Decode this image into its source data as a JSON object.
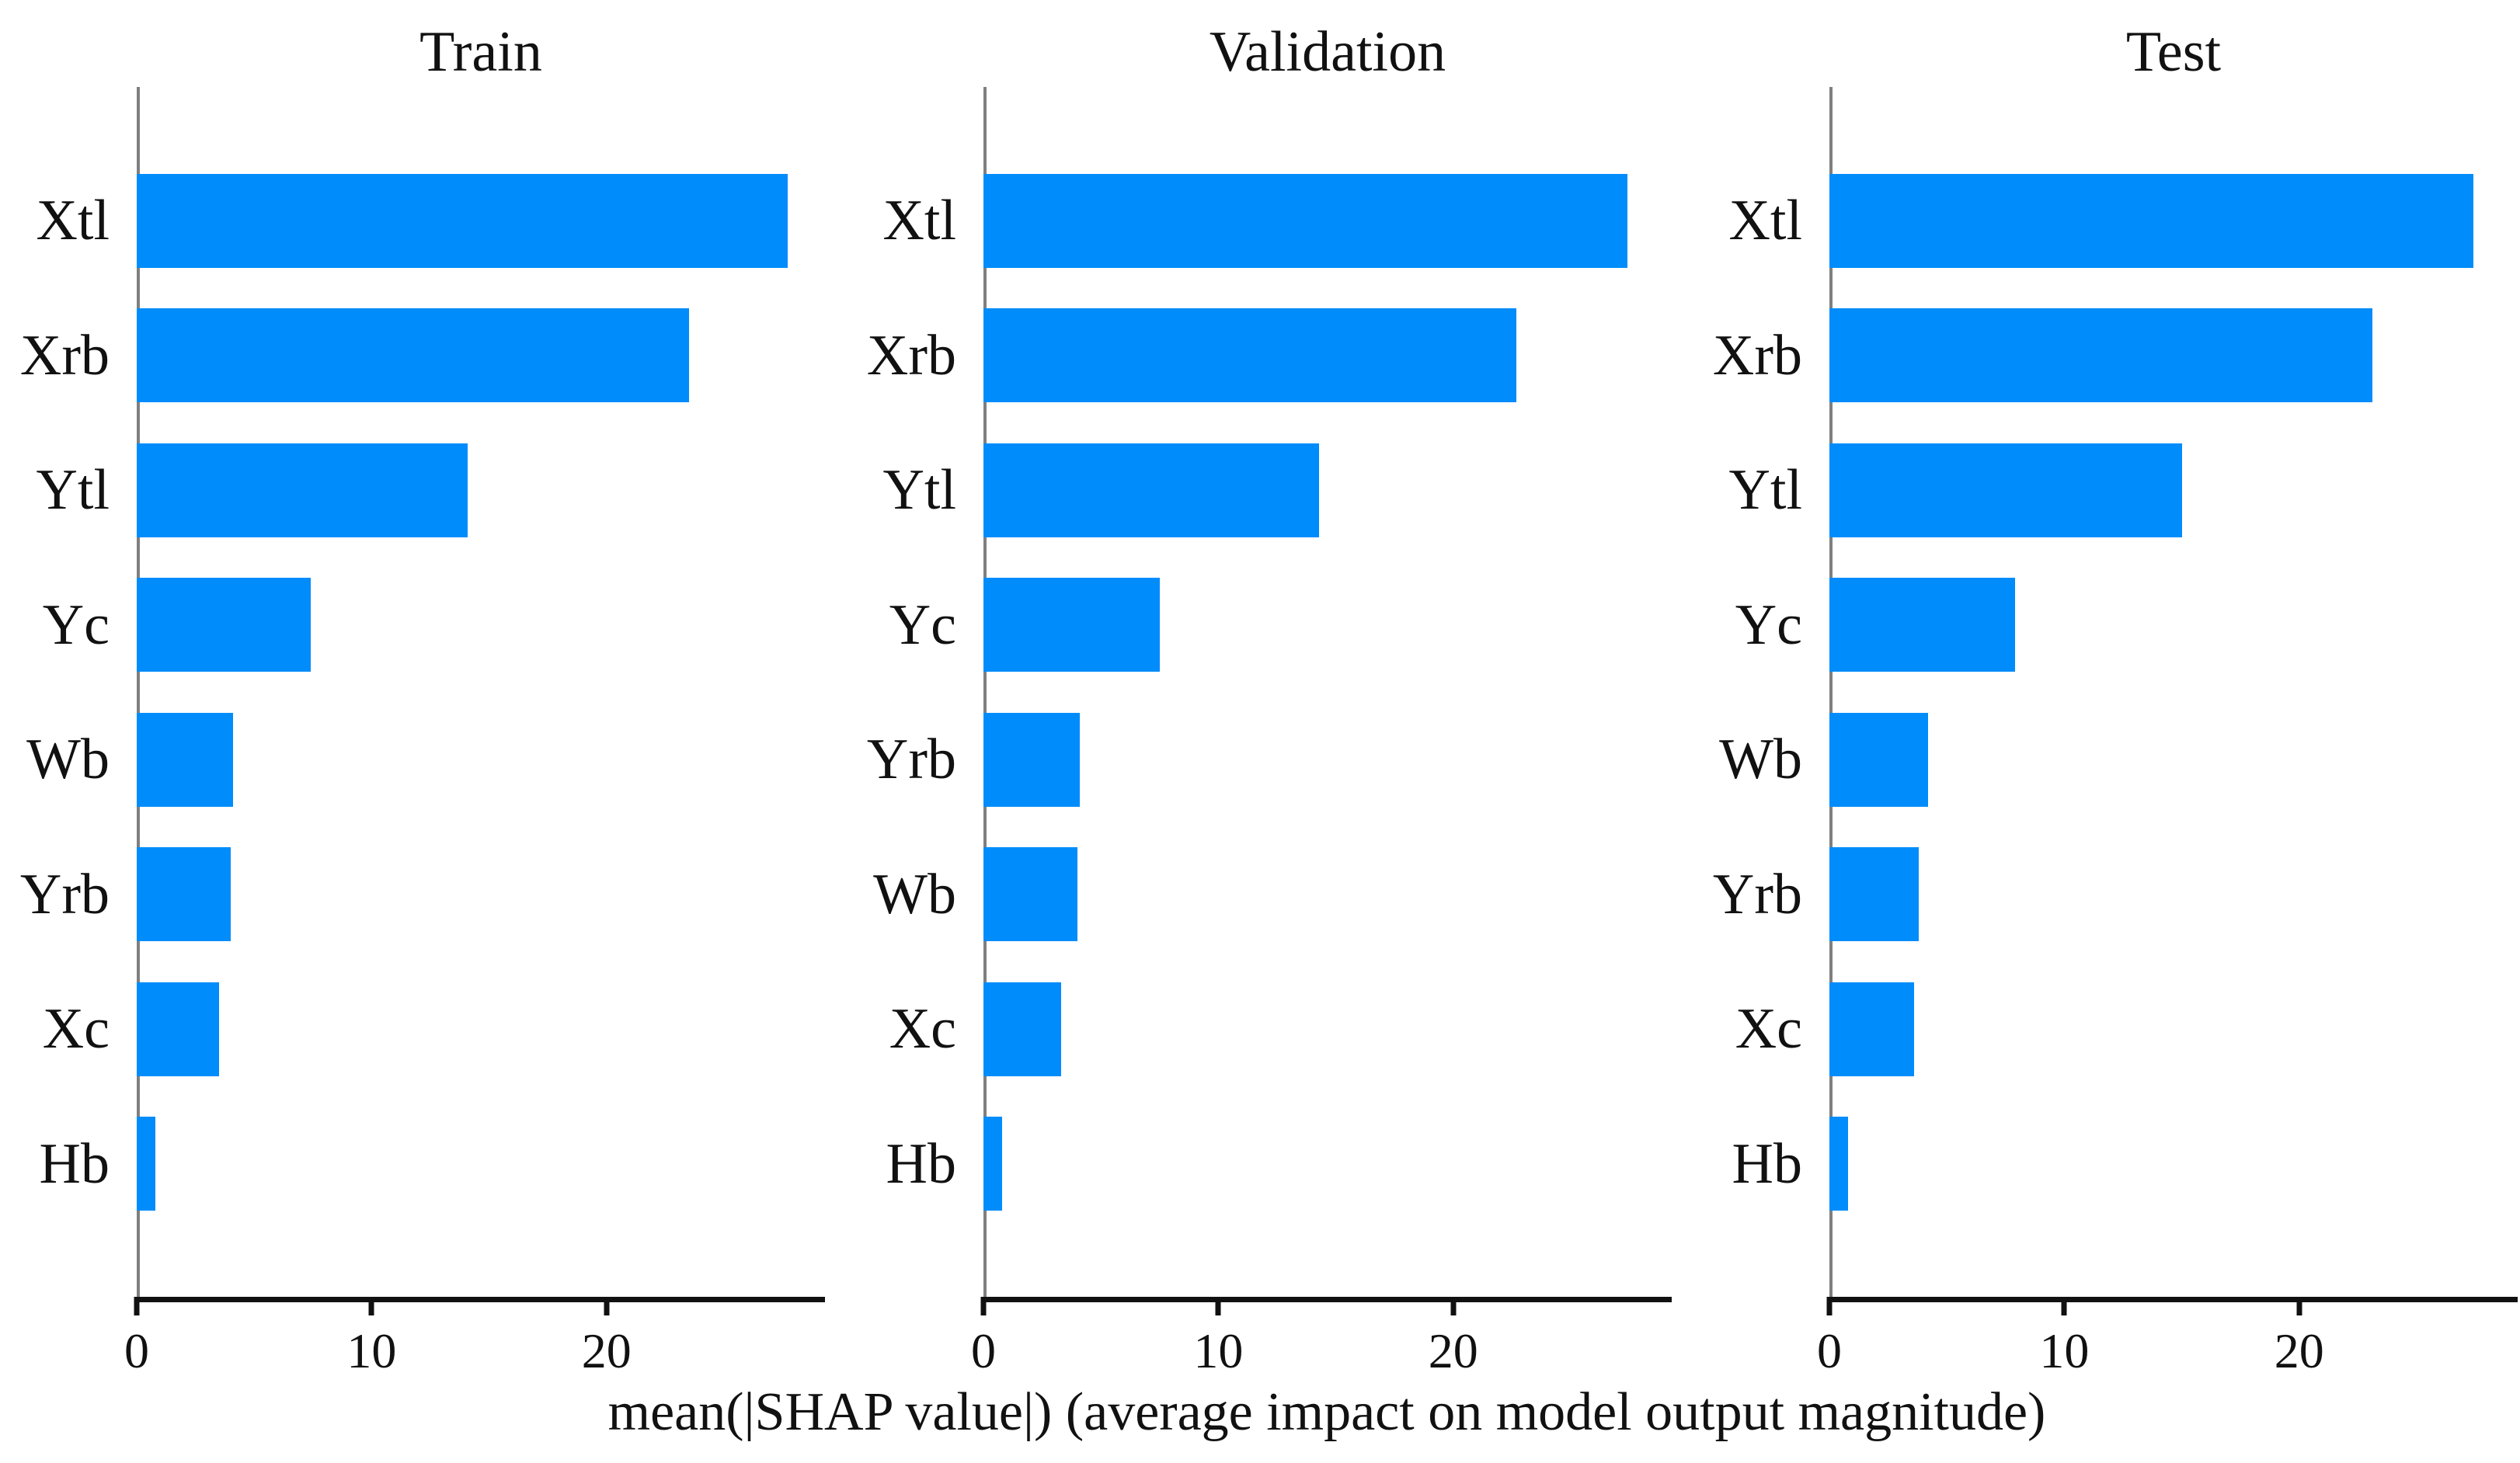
{
  "chart_data": {
    "type": "bar",
    "orientation": "horizontal",
    "title": "",
    "xlabel": "mean(|SHAP value|) (average impact on model output magnitude)",
    "ylabel": "",
    "xlim": [
      0,
      29.3
    ],
    "xticks": [
      0,
      10,
      20
    ],
    "grid": false,
    "legend": "none",
    "bar_color": "#008CFB",
    "panels": [
      {
        "title": "Train",
        "categories": [
          "Xtl",
          "Xrb",
          "Ytl",
          "Yc",
          "Wb",
          "Yrb",
          "Xc",
          "Hb"
        ],
        "values": [
          27.7,
          23.5,
          14.1,
          7.4,
          4.1,
          4.0,
          3.5,
          0.8
        ]
      },
      {
        "title": "Validation",
        "categories": [
          "Xtl",
          "Xrb",
          "Ytl",
          "Yc",
          "Yrb",
          "Wb",
          "Xc",
          "Hb"
        ],
        "values": [
          27.4,
          22.7,
          14.3,
          7.5,
          4.1,
          4.0,
          3.3,
          0.8
        ]
      },
      {
        "title": "Test",
        "categories": [
          "Xtl",
          "Xrb",
          "Ytl",
          "Yc",
          "Wb",
          "Yrb",
          "Xc",
          "Hb"
        ],
        "values": [
          27.4,
          23.1,
          15.0,
          7.9,
          4.2,
          3.8,
          3.6,
          0.8
        ]
      }
    ]
  }
}
